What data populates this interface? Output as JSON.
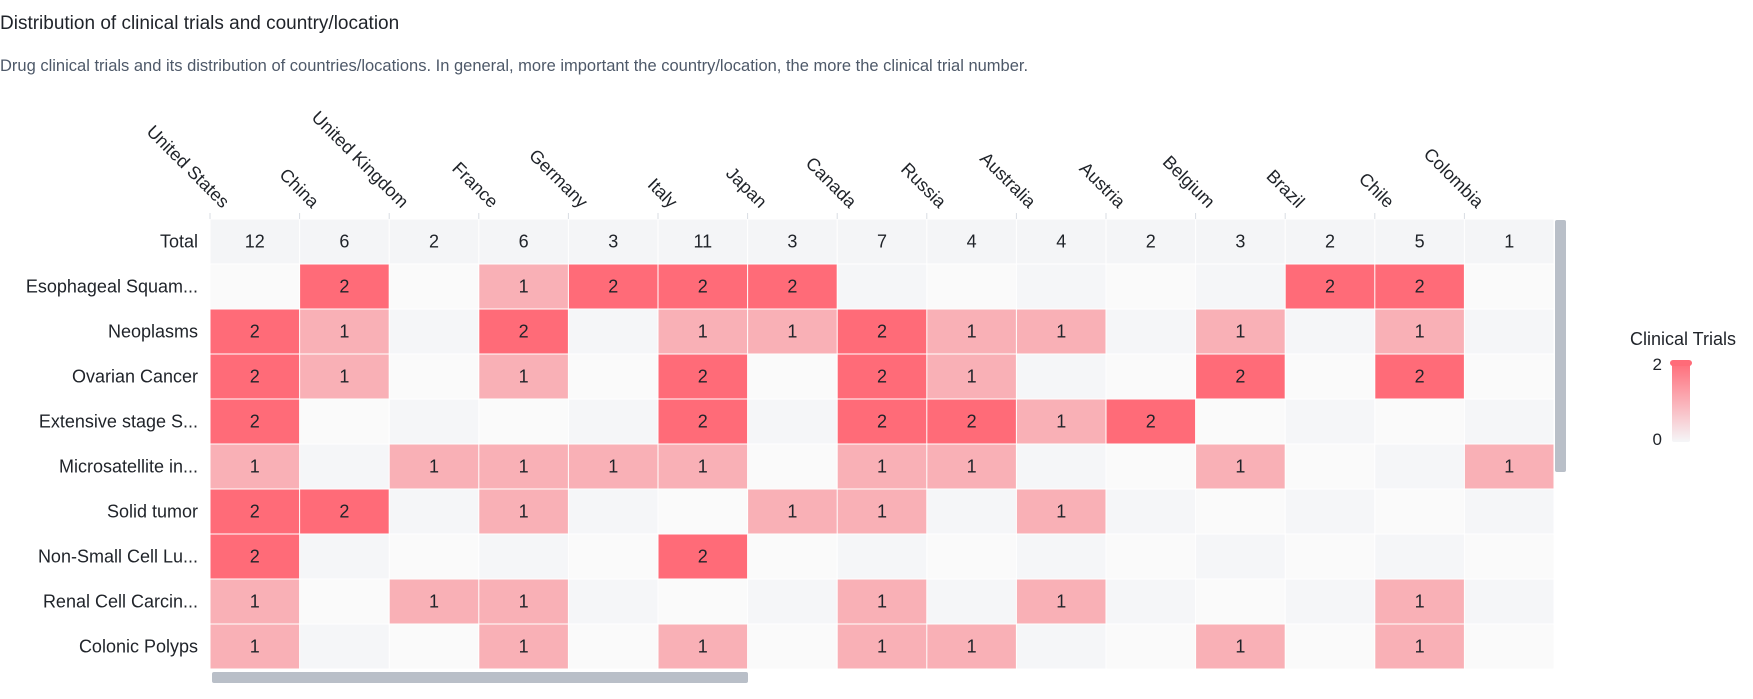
{
  "title": "Distribution of clinical trials and country/location",
  "subtitle": "Drug clinical trials and its distribution of countries/locations. In general, more important the country/location, the more the clinical trial number.",
  "colors": {
    "high": "#ff6b78",
    "low": "#f9b0b6",
    "zero_a": "#f5f6f8",
    "zero_b": "#fafafa",
    "total": "#f4f5f7",
    "text": "#1f2329"
  },
  "chart_data": {
    "type": "heatmap",
    "columns": [
      "United States",
      "China",
      "United Kingdom",
      "France",
      "Germany",
      "Italy",
      "Japan",
      "Canada",
      "Russia",
      "Australia",
      "Austria",
      "Belgium",
      "Brazil",
      "Chile",
      "Colombia"
    ],
    "rows": [
      {
        "label": "Total",
        "values": [
          12,
          6,
          2,
          6,
          3,
          11,
          3,
          7,
          4,
          4,
          2,
          3,
          2,
          5,
          1
        ]
      },
      {
        "label": "Esophageal Squam...",
        "values": [
          0,
          2,
          0,
          1,
          2,
          2,
          2,
          0,
          0,
          0,
          0,
          0,
          2,
          2,
          0
        ]
      },
      {
        "label": "Neoplasms",
        "values": [
          2,
          1,
          0,
          2,
          0,
          1,
          1,
          2,
          1,
          1,
          0,
          1,
          0,
          1,
          0
        ]
      },
      {
        "label": "Ovarian Cancer",
        "values": [
          2,
          1,
          0,
          1,
          0,
          2,
          0,
          2,
          1,
          0,
          0,
          2,
          0,
          2,
          0
        ]
      },
      {
        "label": "Extensive stage S...",
        "values": [
          2,
          0,
          0,
          0,
          0,
          2,
          0,
          2,
          2,
          1,
          2,
          0,
          0,
          0,
          0
        ]
      },
      {
        "label": "Microsatellite in...",
        "values": [
          1,
          0,
          1,
          1,
          1,
          1,
          0,
          1,
          1,
          0,
          0,
          1,
          0,
          0,
          1
        ]
      },
      {
        "label": "Solid tumor",
        "values": [
          2,
          2,
          0,
          1,
          0,
          0,
          1,
          1,
          0,
          1,
          0,
          0,
          0,
          0,
          0
        ]
      },
      {
        "label": "Non-Small Cell Lu...",
        "values": [
          2,
          0,
          0,
          0,
          0,
          2,
          0,
          0,
          0,
          0,
          0,
          0,
          0,
          0,
          0
        ]
      },
      {
        "label": "Renal Cell Carcin...",
        "values": [
          1,
          0,
          1,
          1,
          0,
          0,
          0,
          1,
          0,
          1,
          0,
          0,
          0,
          1,
          0
        ]
      },
      {
        "label": "Colonic Polyps",
        "values": [
          1,
          0,
          0,
          1,
          0,
          1,
          0,
          1,
          1,
          0,
          0,
          1,
          0,
          1,
          0
        ]
      }
    ],
    "legend": {
      "title": "Clinical Trials",
      "max": "2",
      "min": "0",
      "placement": "right"
    }
  }
}
